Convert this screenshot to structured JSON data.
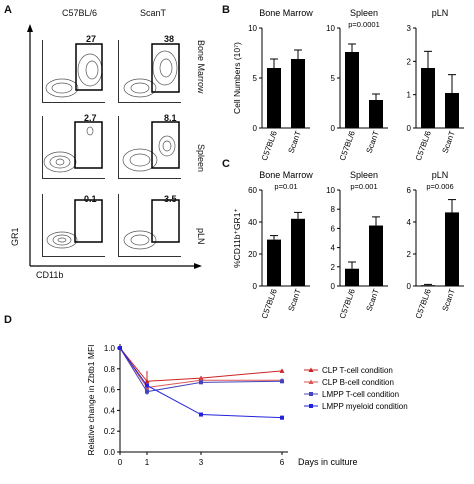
{
  "panels": {
    "a": "A",
    "b": "B",
    "c": "C",
    "d": "D"
  },
  "panelA": {
    "columns": [
      "C57BL/6",
      "ScanT"
    ],
    "rows": [
      "Bone Marrow",
      "Spleen",
      "pLN"
    ],
    "percents": [
      [
        "27",
        "38"
      ],
      [
        "2.7",
        "8.1"
      ],
      [
        "0.1",
        "3.5"
      ]
    ],
    "y_axis": "GR1",
    "x_axis": "CD11b"
  },
  "chart_data": [
    {
      "type": "bar",
      "panel": "B",
      "title": "Bone Marrow",
      "categories": [
        "C57BL/6",
        "ScanT"
      ],
      "values": [
        6.0,
        6.9
      ],
      "errors": [
        0.9,
        0.9
      ],
      "ylim": [
        0,
        10
      ],
      "yticks": [
        0,
        5,
        10
      ],
      "ylabel": "Cell Numbers (10⁷)",
      "annotation": ""
    },
    {
      "type": "bar",
      "panel": "B",
      "title": "Spleen",
      "categories": [
        "C57BL/6",
        "ScanT"
      ],
      "values": [
        7.6,
        2.8
      ],
      "errors": [
        0.8,
        0.6
      ],
      "ylim": [
        0,
        10
      ],
      "yticks": [
        0,
        5,
        10
      ],
      "annotation": "p=0.0001"
    },
    {
      "type": "bar",
      "panel": "B",
      "title": "pLN",
      "categories": [
        "C57BL/6",
        "ScanT"
      ],
      "values": [
        1.8,
        1.05
      ],
      "errors": [
        0.5,
        0.55
      ],
      "ylim": [
        0,
        3
      ],
      "yticks": [
        0,
        1,
        2,
        3
      ],
      "annotation": ""
    },
    {
      "type": "bar",
      "panel": "C",
      "title": "Bone Marrow",
      "categories": [
        "C57BL/6",
        "ScanT"
      ],
      "values": [
        29,
        42
      ],
      "errors": [
        2.5,
        4
      ],
      "ylim": [
        0,
        60
      ],
      "yticks": [
        0,
        20,
        40,
        60
      ],
      "ylabel": "%CD11b⁺GR1⁺",
      "annotation": "p=0.01"
    },
    {
      "type": "bar",
      "panel": "C",
      "title": "Spleen",
      "categories": [
        "C57BL/6",
        "ScanT"
      ],
      "values": [
        1.8,
        6.3
      ],
      "errors": [
        0.7,
        0.9
      ],
      "ylim": [
        0,
        10
      ],
      "yticks": [
        0,
        2,
        4,
        6,
        8,
        10
      ],
      "annotation": "p=0.001"
    },
    {
      "type": "bar",
      "panel": "C",
      "title": "pLN",
      "categories": [
        "C57BL/6",
        "ScanT"
      ],
      "values": [
        0.05,
        4.6
      ],
      "errors": [
        0.05,
        0.8
      ],
      "ylim": [
        0,
        6
      ],
      "yticks": [
        0,
        2,
        4,
        6
      ],
      "annotation": "p=0.006"
    },
    {
      "type": "line",
      "panel": "D",
      "x": [
        0,
        1,
        3,
        6
      ],
      "xticks": [
        0,
        1,
        3,
        6
      ],
      "ylim": [
        0,
        1
      ],
      "yticks": [
        0,
        0.2,
        0.4,
        0.6,
        0.8,
        1.0
      ],
      "ylabel": "Relative change in Zbtb1 MFI",
      "xlabel": "Days in culture",
      "series": [
        {
          "name": "CLP T-cell condition",
          "values": [
            1.0,
            0.68,
            0.71,
            0.78
          ],
          "errors": [
            0,
            0.1,
            0.02,
            0.01
          ],
          "color": "#cc2222"
        },
        {
          "name": "CLP B-cell condition",
          "values": [
            1.0,
            0.62,
            0.69,
            0.69
          ],
          "errors": [
            0,
            0.04,
            0.03,
            0.01
          ],
          "color": "#dd5555"
        },
        {
          "name": "LMPP T-cell condition",
          "values": [
            1.0,
            0.58,
            0.67,
            0.68
          ],
          "errors": [
            0,
            0.03,
            0.01,
            0.02
          ],
          "color": "#4444bb"
        },
        {
          "name": "LMPP myeloid condition",
          "values": [
            1.0,
            0.64,
            0.36,
            0.33
          ],
          "errors": [
            0,
            0.02,
            0.01,
            0.02
          ],
          "color": "#2222dd"
        }
      ]
    }
  ]
}
